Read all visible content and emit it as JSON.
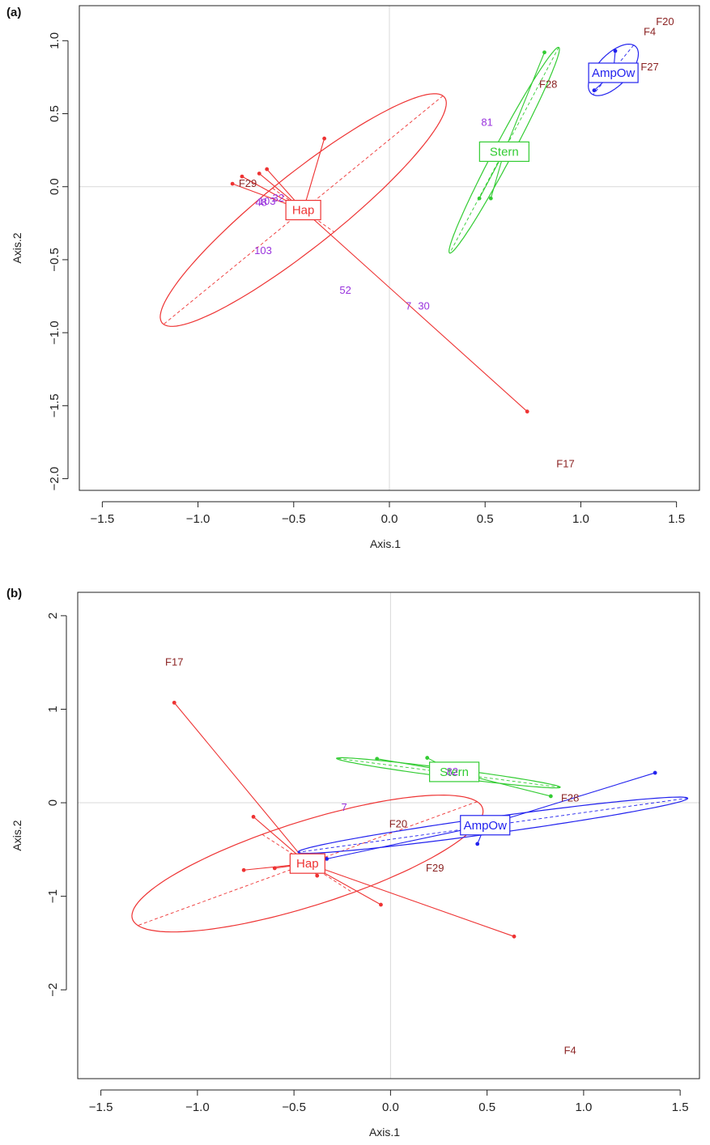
{
  "colors": {
    "Hap": "#ee3333",
    "Stern": "#33cc33",
    "AmpOw": "#2222ee",
    "family_label": "#8b2323",
    "sample_label": "#9933dd",
    "gridline": "#d9d9d9",
    "axis": "#222222"
  },
  "chart_data": [
    {
      "panel": "(a)",
      "type": "scatter",
      "xlabel": "Axis.1",
      "ylabel": "Axis.2",
      "xlim": [
        -1.62,
        1.62
      ],
      "ylim": [
        -2.08,
        1.24
      ],
      "xticks": [
        -1.5,
        -1.0,
        -0.5,
        0.0,
        0.5,
        1.0,
        1.5
      ],
      "xtick_labels": [
        "−1.5",
        "−1.0",
        "−0.5",
        "0.0",
        "0.5",
        "1.0",
        "1.5"
      ],
      "yticks": [
        -2.0,
        -1.5,
        -1.0,
        -0.5,
        0.0,
        0.5,
        1.0
      ],
      "ytick_labels": [
        "−2.0",
        "−1.5",
        "−1.0",
        "−0.5",
        "0.0",
        "0.5",
        "1.0"
      ],
      "grid": "reference lines at x=0 and y=0",
      "groups": [
        {
          "name": "Hap",
          "color_key": "Hap",
          "centroid": [
            -0.45,
            -0.16
          ],
          "points": [
            [
              -0.82,
              0.02
            ],
            [
              -0.77,
              0.07
            ],
            [
              -0.68,
              0.09
            ],
            [
              -0.64,
              0.12
            ],
            [
              -0.34,
              0.33
            ],
            [
              0.72,
              -1.54
            ]
          ],
          "ellipse": {
            "center": [
              -0.45,
              -0.16
            ],
            "rx": 1.07,
            "ry": 0.22,
            "angle_deg": 47
          }
        },
        {
          "name": "Stern",
          "color_key": "Stern",
          "centroid": [
            0.6,
            0.24
          ],
          "points": [
            [
              0.47,
              -0.08
            ],
            [
              0.53,
              -0.08
            ],
            [
              0.81,
              0.92
            ]
          ],
          "ellipse": {
            "center": [
              0.6,
              0.25
            ],
            "rx": 0.76,
            "ry": 0.05,
            "angle_deg": 68
          }
        },
        {
          "name": "AmpOw",
          "color_key": "AmpOw",
          "centroid": [
            1.17,
            0.78
          ],
          "points": [
            [
              1.07,
              0.66
            ],
            [
              1.18,
              0.93
            ]
          ],
          "ellipse": {
            "center": [
              1.17,
              0.8
            ],
            "rx": 0.2,
            "ry": 0.09,
            "angle_deg": 58
          }
        }
      ],
      "family_labels": [
        {
          "text": "F20",
          "x": 1.44,
          "y": 1.13
        },
        {
          "text": "F4",
          "x": 1.36,
          "y": 1.06
        },
        {
          "text": "F27",
          "x": 1.36,
          "y": 0.82
        },
        {
          "text": "F28",
          "x": 0.83,
          "y": 0.7
        },
        {
          "text": "F29",
          "x": -0.74,
          "y": 0.02
        },
        {
          "text": "F17",
          "x": 0.92,
          "y": -1.9
        }
      ],
      "sample_labels": [
        {
          "text": "81",
          "x": 0.51,
          "y": 0.44
        },
        {
          "text": "48",
          "x": -0.67,
          "y": -0.11
        },
        {
          "text": "103",
          "x": -0.64,
          "y": -0.1
        },
        {
          "text": "32",
          "x": -0.58,
          "y": -0.08
        },
        {
          "text": "103",
          "x": -0.66,
          "y": -0.44
        },
        {
          "text": "52",
          "x": -0.23,
          "y": -0.71
        },
        {
          "text": "7",
          "x": 0.1,
          "y": -0.82
        },
        {
          "text": "30",
          "x": 0.18,
          "y": -0.82
        }
      ]
    },
    {
      "panel": "(b)",
      "type": "scatter",
      "xlabel": "Axis.1",
      "ylabel": "Axis.2",
      "xlim": [
        -1.62,
        1.6
      ],
      "ylim": [
        -2.95,
        2.25
      ],
      "xticks": [
        -1.5,
        -1.0,
        -0.5,
        0.0,
        0.5,
        1.0,
        1.5
      ],
      "xtick_labels": [
        "−1.5",
        "−1.0",
        "−0.5",
        "0.0",
        "0.5",
        "1.0",
        "1.5"
      ],
      "yticks": [
        -2,
        -1,
        0,
        1,
        2
      ],
      "ytick_labels": [
        "−2",
        "−1",
        "0",
        "1",
        "2"
      ],
      "grid": "reference lines at x=0 and y=0",
      "groups": [
        {
          "name": "Hap",
          "color_key": "Hap",
          "centroid": [
            -0.43,
            -0.65
          ],
          "points": [
            [
              -1.12,
              1.07
            ],
            [
              -0.71,
              -0.15
            ],
            [
              -0.76,
              -0.72
            ],
            [
              -0.6,
              -0.7
            ],
            [
              -0.38,
              -0.78
            ],
            [
              -0.05,
              -1.09
            ],
            [
              0.64,
              -1.43
            ]
          ],
          "ellipse": {
            "center": [
              -0.43,
              -0.65
            ],
            "rx": 1.1,
            "ry": 0.39,
            "angle_deg": 37
          }
        },
        {
          "name": "Stern",
          "color_key": "Stern",
          "centroid": [
            0.33,
            0.33
          ],
          "points": [
            [
              -0.07,
              0.47
            ],
            [
              0.19,
              0.48
            ],
            [
              0.83,
              0.07
            ]
          ],
          "ellipse": {
            "center": [
              0.3,
              0.32
            ],
            "rx": 0.6,
            "ry": 0.045,
            "angle_deg": -15
          }
        },
        {
          "name": "AmpOw",
          "color_key": "AmpOw",
          "centroid": [
            0.49,
            -0.24
          ],
          "points": [
            [
              -0.33,
              -0.6
            ],
            [
              0.45,
              -0.44
            ],
            [
              1.37,
              0.32
            ]
          ],
          "ellipse": {
            "center": [
              0.53,
              -0.24
            ],
            "rx": 1.05,
            "ry": 0.085,
            "angle_deg": 16
          }
        }
      ],
      "family_labels": [
        {
          "text": "F17",
          "x": -1.12,
          "y": 1.5
        },
        {
          "text": "F28",
          "x": 0.93,
          "y": 0.05
        },
        {
          "text": "F20",
          "x": 0.04,
          "y": -0.23
        },
        {
          "text": "F29",
          "x": 0.23,
          "y": -0.7
        },
        {
          "text": "F4",
          "x": 0.93,
          "y": -2.65
        }
      ],
      "sample_labels": [
        {
          "text": "7",
          "x": -0.24,
          "y": -0.05
        },
        {
          "text": "82",
          "x": 0.32,
          "y": 0.33
        }
      ]
    }
  ]
}
